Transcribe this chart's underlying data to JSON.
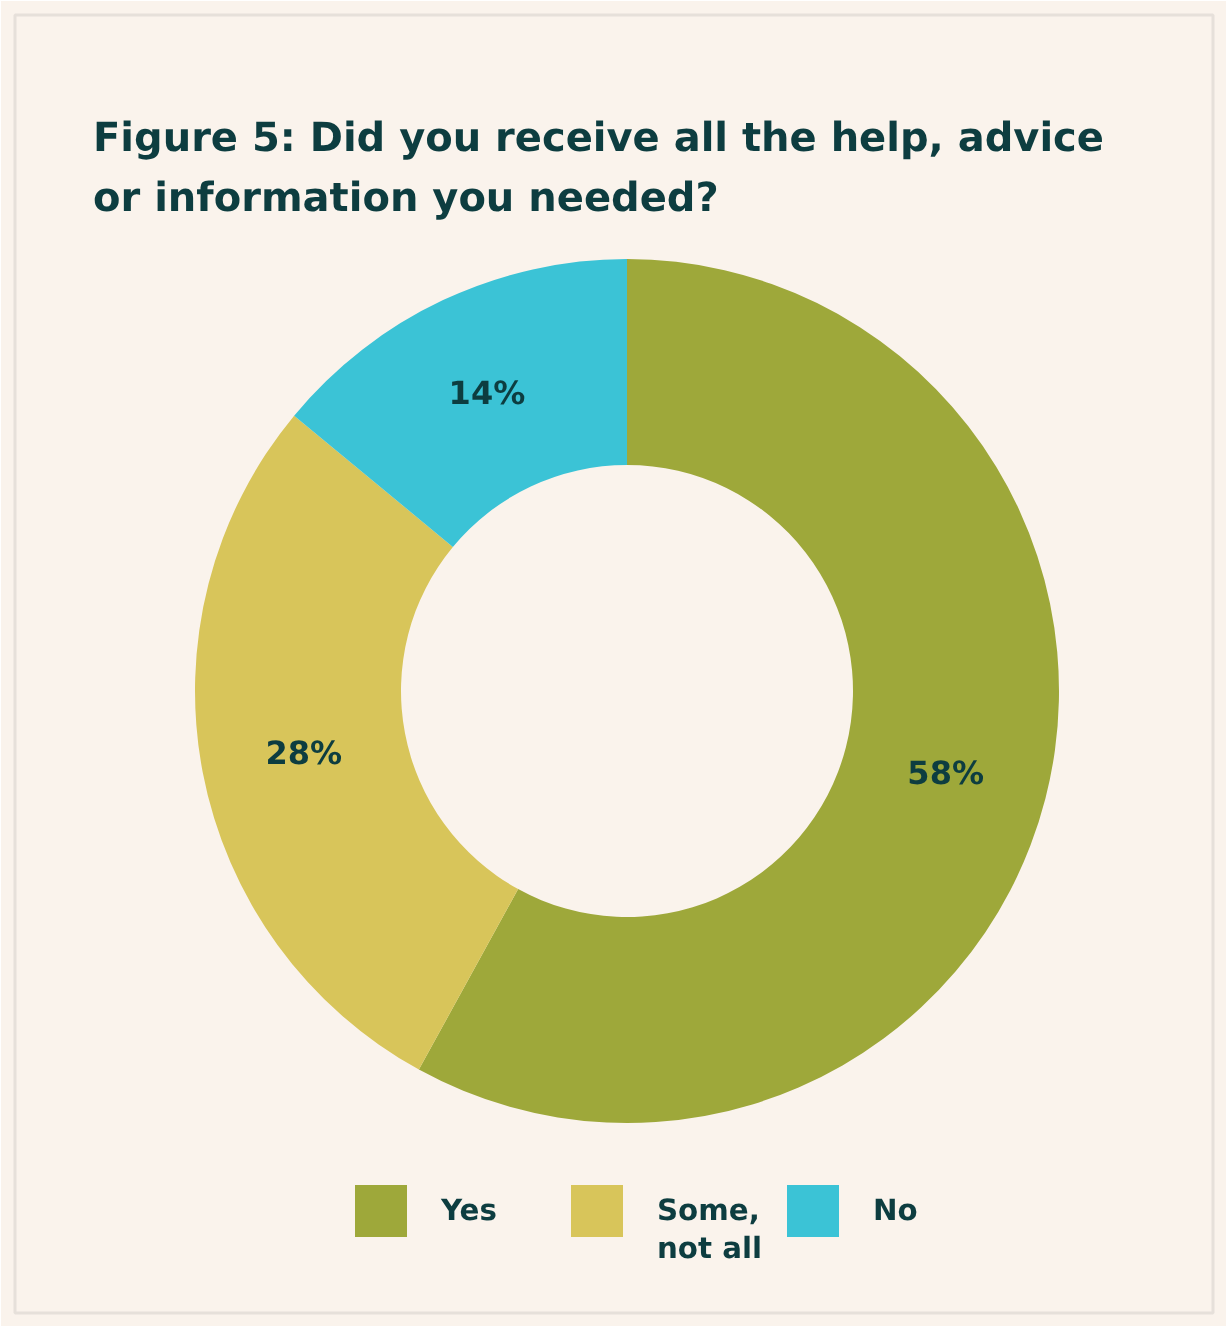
{
  "chart_data": {
    "type": "donut",
    "title": "Figure 5: Did you receive all the help, advice or information you needed?",
    "categories": [
      "Yes",
      "Some, not all",
      "No"
    ],
    "values": [
      58,
      28,
      14
    ],
    "colors": [
      "#9ea83a",
      "#d8c55a",
      "#3bc3d6"
    ],
    "value_labels": [
      "58%",
      "28%",
      "14%"
    ],
    "legend": "bottom"
  }
}
